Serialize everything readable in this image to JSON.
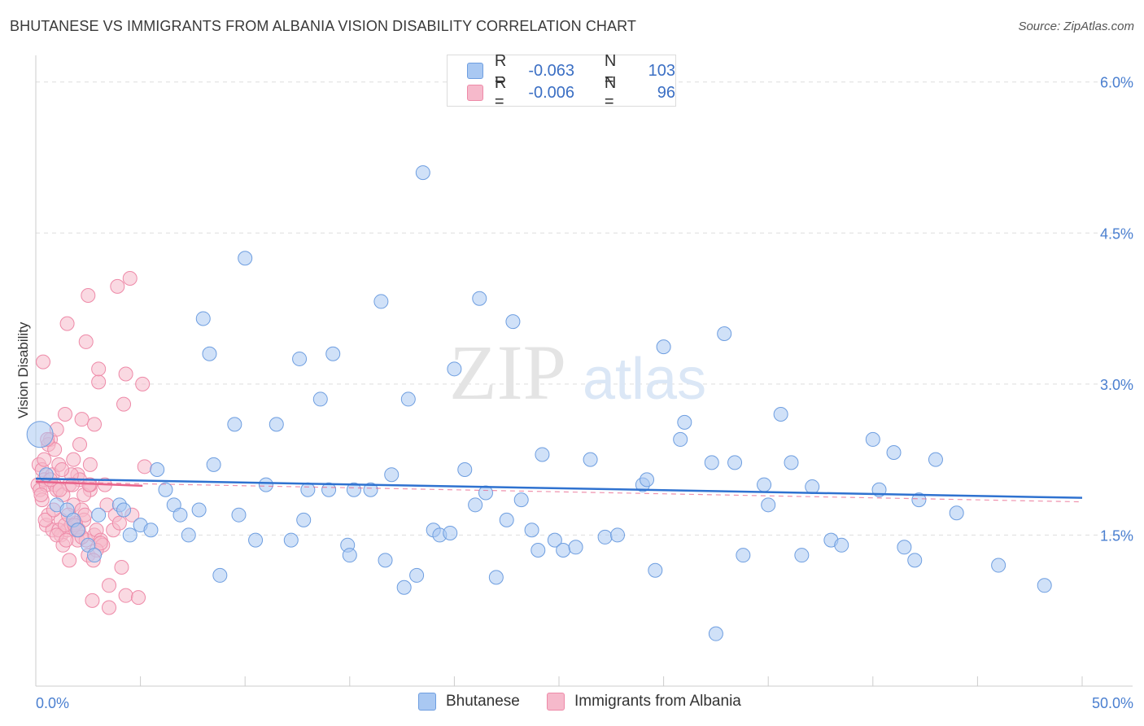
{
  "title": "BHUTANESE VS IMMIGRANTS FROM ALBANIA VISION DISABILITY CORRELATION CHART",
  "source": "Source: ZipAtlas.com",
  "watermark": {
    "zip": "ZIP",
    "atlas": "atlas"
  },
  "legend_top": {
    "rows": [
      {
        "r_label": "R =",
        "r_value": "-0.063",
        "n_label": "N =",
        "n_value": "103",
        "color": "#a9c8f2"
      },
      {
        "r_label": "R =",
        "r_value": "-0.006",
        "n_label": "N =",
        "n_value": "96",
        "color": "#f6b9cb"
      }
    ]
  },
  "legend_bottom": [
    {
      "label": "Bhutanese",
      "color": "#a9c8f2"
    },
    {
      "label": "Immigrants from Albania",
      "color": "#f6b9cb"
    }
  ],
  "colors": {
    "blue_fill": "#a9c8f2",
    "blue_stroke": "#6e9ee0",
    "blue_line": "#2f72d0",
    "pink_fill": "#f6b9cb",
    "pink_stroke": "#ee8aa8",
    "pink_line": "#e8648c",
    "axis_text": "#4a7fd0",
    "grid": "#dddddd"
  },
  "chart_data": {
    "type": "scatter",
    "title": "BHUTANESE VS IMMIGRANTS FROM ALBANIA VISION DISABILITY CORRELATION CHART",
    "xlabel": "",
    "ylabel": "Vision Disability",
    "xlim": [
      0,
      50
    ],
    "ylim": [
      0,
      6.2
    ],
    "x_tick_labels": [
      "0.0%",
      "50.0%"
    ],
    "y_ticks": [
      1.5,
      3.0,
      4.5,
      6.0
    ],
    "y_tick_labels": [
      "1.5%",
      "3.0%",
      "4.5%",
      "6.0%"
    ],
    "series": [
      {
        "name": "Bhutanese",
        "r": -0.063,
        "n": 103,
        "trend": {
          "x": [
            0,
            50
          ],
          "y": [
            2.06,
            1.87
          ]
        },
        "points": [
          [
            0.2,
            2.5
          ],
          [
            0.5,
            2.1
          ],
          [
            1.0,
            1.8
          ],
          [
            1.5,
            1.75
          ],
          [
            1.8,
            1.65
          ],
          [
            2.0,
            1.55
          ],
          [
            2.5,
            1.4
          ],
          [
            2.8,
            1.3
          ],
          [
            3.0,
            1.7
          ],
          [
            4.0,
            1.8
          ],
          [
            4.2,
            1.75
          ],
          [
            4.5,
            1.5
          ],
          [
            5.0,
            1.6
          ],
          [
            5.5,
            1.55
          ],
          [
            5.8,
            2.15
          ],
          [
            6.2,
            1.95
          ],
          [
            6.6,
            1.8
          ],
          [
            6.9,
            1.7
          ],
          [
            7.3,
            1.5
          ],
          [
            7.8,
            1.75
          ],
          [
            8.0,
            3.65
          ],
          [
            8.3,
            3.3
          ],
          [
            8.5,
            2.2
          ],
          [
            8.8,
            1.1
          ],
          [
            9.5,
            2.6
          ],
          [
            9.7,
            1.7
          ],
          [
            10.0,
            4.25
          ],
          [
            10.5,
            1.45
          ],
          [
            11.0,
            2.0
          ],
          [
            11.5,
            2.6
          ],
          [
            12.2,
            1.45
          ],
          [
            12.6,
            3.25
          ],
          [
            12.8,
            1.65
          ],
          [
            13.0,
            1.95
          ],
          [
            13.6,
            2.85
          ],
          [
            14.0,
            1.95
          ],
          [
            14.2,
            3.3
          ],
          [
            14.9,
            1.4
          ],
          [
            15.0,
            1.3
          ],
          [
            15.2,
            1.95
          ],
          [
            16.0,
            1.95
          ],
          [
            16.5,
            3.82
          ],
          [
            16.7,
            1.25
          ],
          [
            17.0,
            2.1
          ],
          [
            17.6,
            0.98
          ],
          [
            17.8,
            2.85
          ],
          [
            18.2,
            1.1
          ],
          [
            18.5,
            5.1
          ],
          [
            19.0,
            1.55
          ],
          [
            19.3,
            1.5
          ],
          [
            19.8,
            1.52
          ],
          [
            20.0,
            3.15
          ],
          [
            20.5,
            2.15
          ],
          [
            21.0,
            1.8
          ],
          [
            21.2,
            3.85
          ],
          [
            21.5,
            1.92
          ],
          [
            22.0,
            1.08
          ],
          [
            22.5,
            1.65
          ],
          [
            22.8,
            3.62
          ],
          [
            23.2,
            1.85
          ],
          [
            23.7,
            1.55
          ],
          [
            24.2,
            2.3
          ],
          [
            24.8,
            1.45
          ],
          [
            25.2,
            1.35
          ],
          [
            25.8,
            1.38
          ],
          [
            26.5,
            2.25
          ],
          [
            27.2,
            1.48
          ],
          [
            27.8,
            1.5
          ],
          [
            29.0,
            2.0
          ],
          [
            29.2,
            2.05
          ],
          [
            29.6,
            1.15
          ],
          [
            30.0,
            3.37
          ],
          [
            30.8,
            2.45
          ],
          [
            31.0,
            2.62
          ],
          [
            32.3,
            2.22
          ],
          [
            32.9,
            3.5
          ],
          [
            33.4,
            2.22
          ],
          [
            33.8,
            1.3
          ],
          [
            34.8,
            2.0
          ],
          [
            35.0,
            1.8
          ],
          [
            35.6,
            2.7
          ],
          [
            36.1,
            2.22
          ],
          [
            36.6,
            1.3
          ],
          [
            37.1,
            1.98
          ],
          [
            38.0,
            1.45
          ],
          [
            38.5,
            1.4
          ],
          [
            40.0,
            2.45
          ],
          [
            40.3,
            1.95
          ],
          [
            41.0,
            2.32
          ],
          [
            41.5,
            1.38
          ],
          [
            42.0,
            1.25
          ],
          [
            42.2,
            1.85
          ],
          [
            43.0,
            2.25
          ],
          [
            44.0,
            1.72
          ],
          [
            46.0,
            1.2
          ],
          [
            48.2,
            1.0
          ],
          [
            32.5,
            0.52
          ],
          [
            24.0,
            1.35
          ]
        ]
      },
      {
        "name": "Immigrants from Albania",
        "r": -0.006,
        "n": 96,
        "trend": {
          "x": [
            0,
            5.1
          ],
          "y": [
            2.03,
            1.99
          ]
        },
        "trend_extended": {
          "x": [
            0,
            50
          ],
          "y": [
            2.03,
            1.83
          ]
        },
        "points": [
          [
            0.1,
            2.0
          ],
          [
            0.15,
            2.2
          ],
          [
            0.2,
            1.95
          ],
          [
            0.3,
            2.15
          ],
          [
            0.3,
            1.85
          ],
          [
            0.35,
            3.22
          ],
          [
            0.4,
            2.05
          ],
          [
            0.5,
            1.6
          ],
          [
            0.5,
            2.0
          ],
          [
            0.6,
            1.7
          ],
          [
            0.7,
            2.45
          ],
          [
            0.8,
            2.1
          ],
          [
            0.8,
            1.55
          ],
          [
            0.9,
            2.0
          ],
          [
            1.0,
            1.95
          ],
          [
            1.0,
            2.55
          ],
          [
            1.1,
            2.2
          ],
          [
            1.2,
            1.65
          ],
          [
            1.2,
            1.5
          ],
          [
            1.3,
            1.4
          ],
          [
            1.3,
            1.9
          ],
          [
            1.4,
            2.7
          ],
          [
            1.5,
            3.6
          ],
          [
            1.5,
            1.55
          ],
          [
            1.6,
            2.0
          ],
          [
            1.6,
            1.25
          ],
          [
            1.7,
            1.6
          ],
          [
            1.8,
            2.25
          ],
          [
            1.8,
            1.8
          ],
          [
            1.9,
            1.55
          ],
          [
            2.0,
            2.1
          ],
          [
            2.0,
            1.45
          ],
          [
            2.1,
            2.05
          ],
          [
            2.1,
            2.4
          ],
          [
            2.2,
            2.65
          ],
          [
            2.2,
            1.75
          ],
          [
            2.3,
            1.65
          ],
          [
            2.4,
            1.45
          ],
          [
            2.4,
            3.42
          ],
          [
            2.5,
            1.3
          ],
          [
            2.5,
            3.88
          ],
          [
            2.6,
            1.95
          ],
          [
            2.6,
            2.2
          ],
          [
            2.7,
            0.85
          ],
          [
            2.8,
            1.5
          ],
          [
            2.8,
            2.6
          ],
          [
            2.9,
            1.55
          ],
          [
            3.0,
            3.02
          ],
          [
            3.0,
            3.15
          ],
          [
            3.1,
            1.45
          ],
          [
            3.2,
            1.4
          ],
          [
            3.3,
            2.0
          ],
          [
            3.4,
            1.8
          ],
          [
            3.5,
            1.0
          ],
          [
            3.5,
            0.78
          ],
          [
            3.7,
            1.55
          ],
          [
            3.8,
            1.7
          ],
          [
            3.9,
            3.97
          ],
          [
            4.0,
            1.62
          ],
          [
            4.1,
            1.18
          ],
          [
            4.2,
            2.8
          ],
          [
            4.3,
            3.1
          ],
          [
            4.3,
            0.9
          ],
          [
            4.5,
            4.05
          ],
          [
            4.6,
            1.7
          ],
          [
            5.1,
            3.0
          ],
          [
            4.9,
            0.88
          ],
          [
            5.2,
            2.18
          ],
          [
            0.4,
            2.25
          ],
          [
            0.6,
            2.4
          ],
          [
            0.9,
            2.35
          ],
          [
            1.1,
            1.55
          ],
          [
            1.4,
            1.6
          ],
          [
            1.7,
            2.1
          ],
          [
            1.9,
            1.62
          ],
          [
            2.2,
            1.48
          ],
          [
            2.3,
            1.9
          ],
          [
            2.6,
            2.0
          ],
          [
            2.9,
            1.35
          ],
          [
            3.1,
            1.42
          ],
          [
            0.25,
            1.9
          ],
          [
            0.45,
            1.65
          ],
          [
            0.7,
            2.05
          ],
          [
            1.0,
            1.5
          ],
          [
            1.25,
            2.15
          ],
          [
            1.55,
            1.7
          ],
          [
            1.85,
            1.6
          ],
          [
            2.05,
            1.55
          ],
          [
            2.35,
            1.7
          ],
          [
            2.55,
            2.0
          ],
          [
            2.75,
            1.25
          ],
          [
            0.55,
            2.45
          ],
          [
            0.85,
            1.75
          ],
          [
            1.15,
            1.95
          ],
          [
            1.45,
            1.45
          ],
          [
            1.75,
            2.0
          ]
        ]
      }
    ]
  }
}
